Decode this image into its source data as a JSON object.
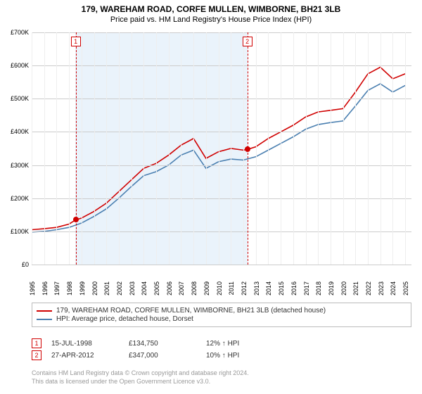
{
  "title": "179, WAREHAM ROAD, CORFE MULLEN, WIMBORNE, BH21 3LB",
  "subtitle": "Price paid vs. HM Land Registry's House Price Index (HPI)",
  "chart": {
    "type": "line",
    "background_color": "#ffffff",
    "grid_color_h": "#cccccc",
    "grid_color_v": "#eeeeee",
    "x_years": [
      1995,
      1996,
      1997,
      1998,
      1999,
      2000,
      2001,
      2002,
      2003,
      2004,
      2005,
      2006,
      2007,
      2008,
      2009,
      2010,
      2011,
      2012,
      2013,
      2014,
      2015,
      2016,
      2017,
      2018,
      2019,
      2020,
      2021,
      2022,
      2023,
      2024,
      2025
    ],
    "x_label_fontsize": 9,
    "x_label_rotation": -90,
    "y_ticks": [
      0,
      100000,
      200000,
      300000,
      400000,
      500000,
      600000,
      700000
    ],
    "y_tick_labels": [
      "£0",
      "£100K",
      "£200K",
      "£300K",
      "£400K",
      "£500K",
      "£600K",
      "£700K"
    ],
    "ylim": [
      0,
      700000
    ],
    "xlim": [
      1995,
      2025.5
    ],
    "line_width": 1.6,
    "series": [
      {
        "name": "179, WAREHAM ROAD, CORFE MULLEN, WIMBORNE, BH21 3LB (detached house)",
        "color": "#d00000",
        "x": [
          1995,
          1996,
          1997,
          1998,
          1998.54,
          1999,
          2000,
          2001,
          2002,
          2003,
          2004,
          2005,
          2006,
          2007,
          2008,
          2009,
          2010,
          2011,
          2012,
          2012.32,
          2013,
          2014,
          2015,
          2016,
          2017,
          2018,
          2019,
          2020,
          2021,
          2022,
          2023,
          2024,
          2025
        ],
        "y": [
          105000,
          108000,
          112000,
          122000,
          134750,
          140000,
          160000,
          185000,
          220000,
          255000,
          290000,
          305000,
          330000,
          360000,
          380000,
          320000,
          340000,
          350000,
          345000,
          347000,
          355000,
          380000,
          400000,
          420000,
          445000,
          460000,
          465000,
          470000,
          520000,
          575000,
          595000,
          560000,
          575000
        ]
      },
      {
        "name": "HPI: Average price, detached house, Dorset",
        "color": "#4a7fb0",
        "x": [
          1995,
          1996,
          1997,
          1998,
          1999,
          2000,
          2001,
          2002,
          2003,
          2004,
          2005,
          2006,
          2007,
          2008,
          2009,
          2010,
          2011,
          2012,
          2013,
          2014,
          2015,
          2016,
          2017,
          2018,
          2019,
          2020,
          2021,
          2022,
          2023,
          2024,
          2025
        ],
        "y": [
          98000,
          100000,
          105000,
          112000,
          125000,
          145000,
          168000,
          200000,
          235000,
          268000,
          280000,
          300000,
          330000,
          345000,
          290000,
          310000,
          318000,
          315000,
          325000,
          345000,
          365000,
          385000,
          408000,
          422000,
          428000,
          433000,
          478000,
          525000,
          545000,
          520000,
          540000
        ]
      }
    ],
    "shaded_ranges": [
      {
        "x0": 1998.5,
        "x1": 2012.35,
        "color": "#eaf3fb"
      }
    ],
    "markers": [
      {
        "num": "1",
        "x": 1998.54,
        "y": 134750,
        "color": "#d00000"
      },
      {
        "num": "2",
        "x": 2012.32,
        "y": 347000,
        "color": "#d00000"
      }
    ]
  },
  "legend": {
    "items": [
      {
        "label": "179, WAREHAM ROAD, CORFE MULLEN, WIMBORNE, BH21 3LB (detached house)",
        "color": "#d00000"
      },
      {
        "label": "HPI: Average price, detached house, Dorset",
        "color": "#4a7fb0"
      }
    ]
  },
  "events": [
    {
      "num": "1",
      "date": "15-JUL-1998",
      "price": "£134,750",
      "delta": "12% ↑ HPI"
    },
    {
      "num": "2",
      "date": "27-APR-2012",
      "price": "£347,000",
      "delta": "10% ↑ HPI"
    }
  ],
  "footer": {
    "line1": "Contains HM Land Registry data © Crown copyright and database right 2024.",
    "line2": "This data is licensed under the Open Government Licence v3.0."
  }
}
